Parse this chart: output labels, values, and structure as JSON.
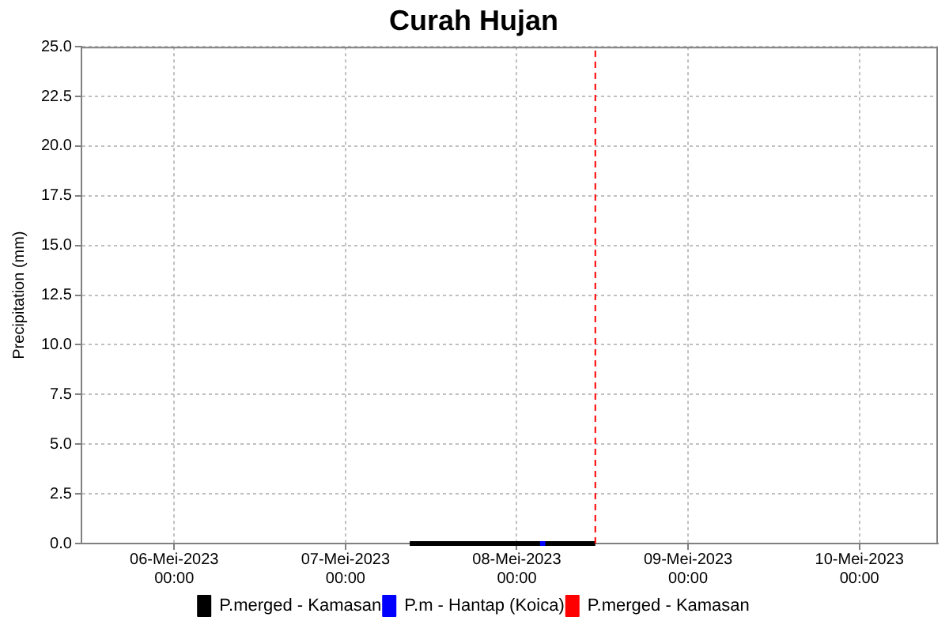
{
  "chart_data": {
    "type": "line",
    "title": "Curah Hujan",
    "ylabel": "Precipitation (mm)",
    "xlim": [
      "2023-05-05T11:00",
      "2023-05-10T11:00"
    ],
    "xticks": [
      {
        "value": "2023-05-06",
        "label": "06-Mei-2023\n00:00"
      },
      {
        "value": "2023-05-07",
        "label": "07-Mei-2023\n00:00"
      },
      {
        "value": "2023-05-08",
        "label": "08-Mei-2023\n00:00"
      },
      {
        "value": "2023-05-09",
        "label": "09-Mei-2023\n00:00"
      },
      {
        "value": "2023-05-10",
        "label": "10-Mei-2023\n00:00"
      }
    ],
    "ylim": [
      0,
      25
    ],
    "yticks": [
      {
        "value": 0,
        "label": "0.0"
      },
      2.5,
      {
        "value": 5,
        "label": "5.0"
      },
      7.5,
      {
        "value": 10,
        "label": "10.0"
      },
      12.5,
      {
        "value": 15,
        "label": "15.0"
      },
      17.5,
      {
        "value": 20,
        "label": "20.0"
      },
      22.5,
      {
        "value": 25,
        "label": "25.0"
      }
    ],
    "grid": true,
    "legend": "bottom",
    "marker": "none",
    "series": [
      {
        "name": "P.merged - Kamasan",
        "color": "#000000",
        "line_style": "solid",
        "x": [
          "2023-05-07T09:00",
          "2023-05-07T10:00",
          "2023-05-07T11:00",
          "2023-05-07T12:00",
          "2023-05-07T13:00",
          "2023-05-07T14:00",
          "2023-05-07T15:00",
          "2023-05-07T16:00",
          "2023-05-07T17:00",
          "2023-05-07T18:00",
          "2023-05-07T19:00",
          "2023-05-07T20:00",
          "2023-05-07T21:00",
          "2023-05-07T22:00",
          "2023-05-07T23:00",
          "2023-05-08T00:00",
          "2023-05-08T01:00",
          "2023-05-08T02:00",
          "2023-05-08T03:00",
          "2023-05-08T04:00",
          "2023-05-08T05:00",
          "2023-05-08T06:00",
          "2023-05-08T07:00",
          "2023-05-08T08:00",
          "2023-05-08T09:00",
          "2023-05-08T10:00",
          "2023-05-08T11:00"
        ],
        "values": [
          0,
          0,
          0,
          0,
          0,
          0,
          0,
          0,
          0,
          0,
          0,
          0,
          0,
          0,
          0,
          0,
          0,
          0,
          0,
          0,
          0,
          0,
          0,
          0,
          0,
          0,
          0
        ]
      },
      {
        "name": "P.m - Hantap (Koica)",
        "color": "#0000ff",
        "line_style": "solid",
        "x": [
          "2023-05-08T03:15",
          "2023-05-08T04:00"
        ],
        "values": [
          0,
          0
        ]
      },
      {
        "name": "P.merged - Kamasan",
        "color": "#ff0000",
        "line_style": "dashed",
        "x": [
          "2023-05-08T11:00",
          "2023-05-08T11:00"
        ],
        "values": [
          0,
          25
        ]
      }
    ]
  }
}
